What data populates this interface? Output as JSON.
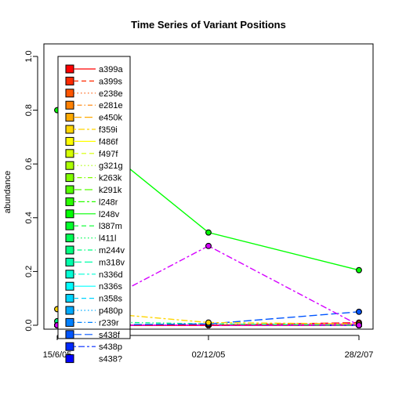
{
  "chart_data": {
    "type": "line",
    "title": "Time Series of Variant Positions",
    "xlabel": "",
    "ylabel": "abundance",
    "x": [
      "15/6/05",
      "02/12/05",
      "28/2/07"
    ],
    "ylim": [
      0,
      1.0
    ],
    "yticks": [
      "0.0",
      "0.2",
      "0.4",
      "0.6",
      "0.8",
      "1.0"
    ],
    "grid": false,
    "legend_position": "top-left",
    "series": [
      {
        "name": "a399a",
        "color": "#FF0000",
        "dash": "solid",
        "values": [
          0.0,
          0.0,
          0.0
        ]
      },
      {
        "name": "a399s",
        "color": "#FF2A00",
        "dash": "dashed",
        "values": [
          0.0,
          0.0,
          0.0
        ]
      },
      {
        "name": "e238e",
        "color": "#FF5500",
        "dash": "dotted",
        "values": [
          0.0,
          0.0,
          0.0
        ]
      },
      {
        "name": "e281e",
        "color": "#FF8000",
        "dash": "dotdash",
        "values": [
          0.0,
          0.0,
          0.0
        ]
      },
      {
        "name": "e450k",
        "color": "#FFAA00",
        "dash": "longdash",
        "values": [
          0.0,
          0.0,
          0.0
        ]
      },
      {
        "name": "f359i",
        "color": "#FFD500",
        "dash": "twodash",
        "values": [
          0.06,
          0.01,
          0.005
        ]
      },
      {
        "name": "f486f",
        "color": "#FFFF00",
        "dash": "solid",
        "values": [
          0.0,
          0.0,
          0.0
        ]
      },
      {
        "name": "f497f",
        "color": "#D5FF00",
        "dash": "dashed",
        "values": [
          0.0,
          0.0,
          0.0
        ]
      },
      {
        "name": "g321g",
        "color": "#AAFF00",
        "dash": "dotted",
        "values": [
          0.0,
          0.0,
          0.0
        ]
      },
      {
        "name": "k263k",
        "color": "#80FF00",
        "dash": "dotdash",
        "values": [
          0.0,
          0.0,
          0.0
        ]
      },
      {
        "name": "k291k",
        "color": "#55FF00",
        "dash": "longdash",
        "values": [
          0.0,
          0.0,
          0.0
        ]
      },
      {
        "name": "l248r",
        "color": "#2AFF00",
        "dash": "twodash",
        "values": [
          0.0,
          0.0,
          0.0
        ]
      },
      {
        "name": "l248v",
        "color": "#00FF00",
        "dash": "solid",
        "values": [
          0.8,
          0.345,
          0.205
        ]
      },
      {
        "name": "l387m",
        "color": "#00FF2A",
        "dash": "dashed",
        "values": [
          0.0,
          0.0,
          0.0
        ]
      },
      {
        "name": "l411l",
        "color": "#00FF55",
        "dash": "dotted",
        "values": [
          0.0,
          0.0,
          0.0
        ]
      },
      {
        "name": "m244v",
        "color": "#00FF80",
        "dash": "dotdash",
        "values": [
          0.015,
          0.005,
          0.0
        ]
      },
      {
        "name": "m318v",
        "color": "#00FFAA",
        "dash": "longdash",
        "values": [
          0.0,
          0.0,
          0.0
        ]
      },
      {
        "name": "n336d",
        "color": "#00FFD5",
        "dash": "twodash",
        "values": [
          0.0,
          0.0,
          0.0
        ]
      },
      {
        "name": "n336s",
        "color": "#00FFFF",
        "dash": "solid",
        "values": [
          0.0,
          0.0,
          0.0
        ]
      },
      {
        "name": "n358s",
        "color": "#00D5FF",
        "dash": "dashed",
        "values": [
          0.0,
          0.0,
          0.0
        ]
      },
      {
        "name": "p480p",
        "color": "#00AAFF",
        "dash": "dotted",
        "values": [
          0.0,
          0.0,
          0.0
        ]
      },
      {
        "name": "r239r",
        "color": "#0080FF",
        "dash": "dotdash",
        "values": [
          0.0,
          0.0,
          0.0
        ]
      },
      {
        "name": "s438f",
        "color": "#0055FF",
        "dash": "longdash",
        "values": [
          0.0,
          0.005,
          0.05
        ]
      },
      {
        "name": "s438p",
        "color": "#002AFF",
        "dash": "twodash",
        "values": [
          0.0,
          0.0,
          0.0
        ]
      },
      {
        "name": "",
        "color": "#0000FF",
        "dash": "solid",
        "values": [
          0.0,
          0.0,
          0.0
        ]
      },
      {
        "name": "",
        "color": "#2A00FF",
        "dash": "dashed",
        "values": [
          0.0,
          0.0,
          0.0
        ]
      },
      {
        "name": "",
        "color": "#5500FF",
        "dash": "dotted",
        "values": [
          0.0,
          0.0,
          0.0
        ]
      },
      {
        "name": "",
        "color": "#8000FF",
        "dash": "dotdash",
        "values": [
          0.0,
          0.0,
          0.0
        ]
      },
      {
        "name": "",
        "color": "#AA00FF",
        "dash": "longdash",
        "values": [
          0.0,
          0.0,
          0.0
        ]
      },
      {
        "name": "",
        "color": "#D500FF",
        "dash": "twodash",
        "values": [
          0.0,
          0.295,
          0.0
        ]
      },
      {
        "name": "",
        "color": "#FF00D5",
        "dash": "solid",
        "values": [
          0.0,
          0.0,
          0.005
        ]
      },
      {
        "name": "",
        "color": "#FF00AA",
        "dash": "dashed",
        "values": [
          0.0,
          0.0,
          0.0
        ]
      },
      {
        "name": "",
        "color": "#FF0080",
        "dash": "dotted",
        "values": [
          0.0,
          0.0,
          0.0
        ]
      },
      {
        "name": "",
        "color": "#FF0055",
        "dash": "dotdash",
        "values": [
          0.0,
          0.0,
          0.0
        ]
      },
      {
        "name": "",
        "color": "#FF002A",
        "dash": "longdash",
        "values": [
          0.0,
          0.0,
          0.01
        ]
      }
    ],
    "partial_legend_text": "s438?"
  }
}
